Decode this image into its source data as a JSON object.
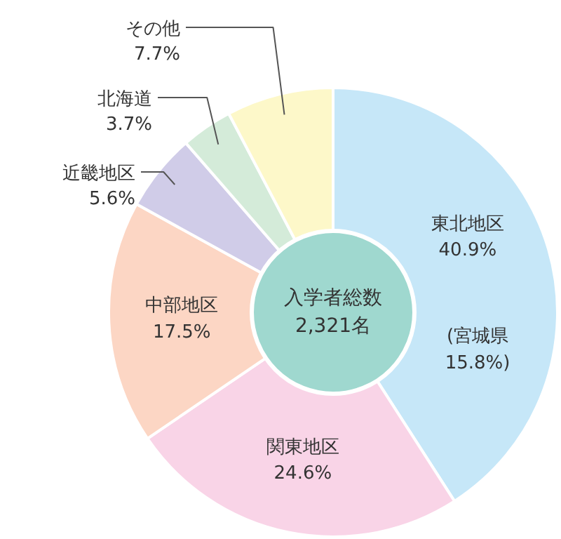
{
  "chart_data": {
    "type": "donut",
    "categories": [
      "東北地区",
      "関東地区",
      "中部地区",
      "近畿地区",
      "北海道",
      "その他"
    ],
    "values": [
      40.9,
      24.6,
      17.5,
      5.6,
      3.7,
      7.7
    ],
    "value_labels": [
      "40.9%",
      "24.6%",
      "17.5%",
      "5.6%",
      "3.7%",
      "7.7%"
    ],
    "colors": [
      "#c6e7f8",
      "#f9d4e7",
      "#fcd6c4",
      "#d0cce8",
      "#d4ebd9",
      "#fdf8c9"
    ],
    "annotations": [
      "入学者総数 2,321名",
      "(宮城県 15.8%)"
    ]
  }
}
